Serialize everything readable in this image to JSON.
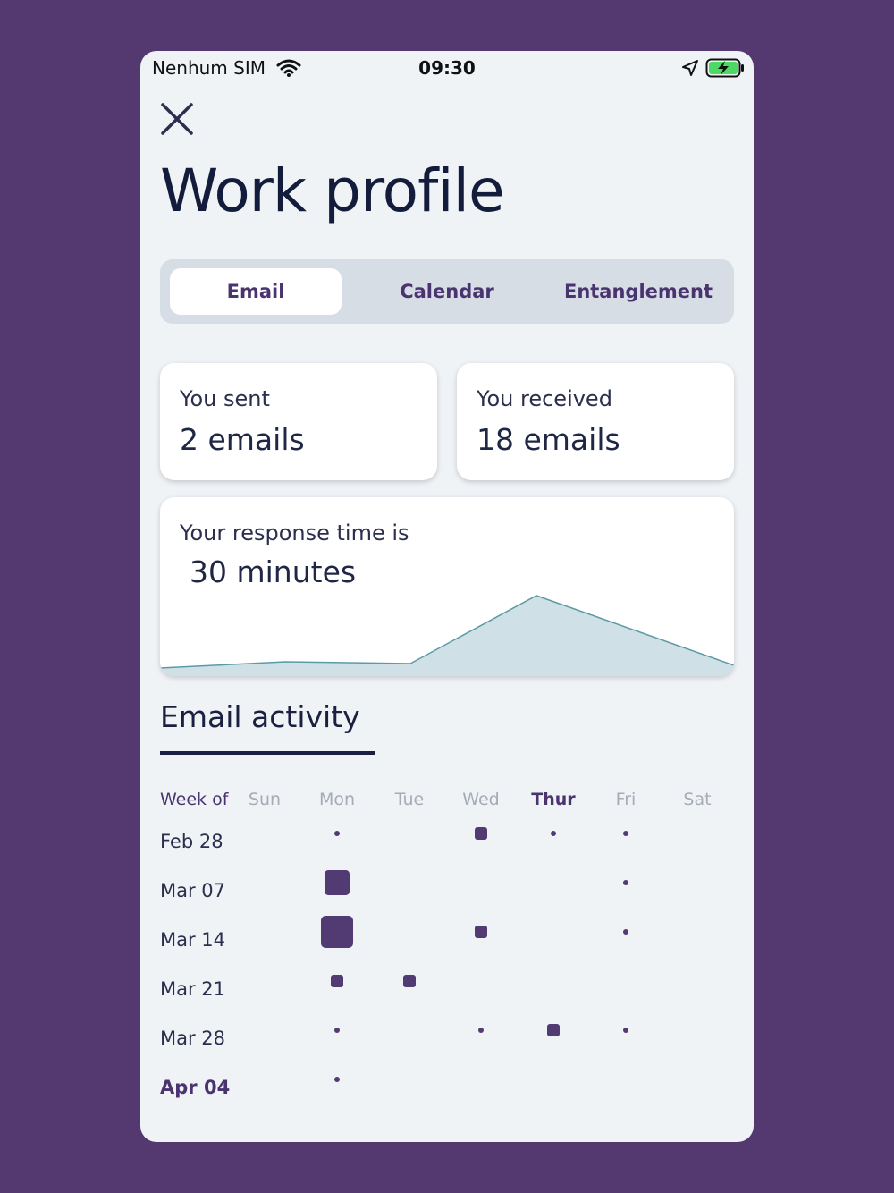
{
  "status_bar": {
    "carrier": "Nenhum SIM",
    "time": "09:30",
    "icons": [
      "wifi-icon",
      "location-arrow-icon",
      "battery-charging-icon"
    ]
  },
  "header": {
    "close_icon": "close-icon",
    "title": "Work profile"
  },
  "tabs": [
    {
      "label": "Email",
      "active": true
    },
    {
      "label": "Calendar",
      "active": false
    },
    {
      "label": "Entanglement",
      "active": false
    }
  ],
  "stats": {
    "sent": {
      "label": "You sent",
      "value": "2 emails"
    },
    "received": {
      "label": "You received",
      "value": "18 emails"
    }
  },
  "response_time": {
    "label": "Your response time is",
    "value": "30 minutes"
  },
  "email_activity": {
    "title": "Email activity",
    "week_of_label": "Week of",
    "days": [
      "Sun",
      "Mon",
      "Tue",
      "Wed",
      "Thur",
      "Fri",
      "Sat"
    ],
    "highlight_day": "Thur",
    "current_week": "Apr 04",
    "weeks": [
      {
        "label": "Feb 28",
        "activity": [
          0,
          1,
          0,
          2,
          1,
          1,
          0
        ]
      },
      {
        "label": "Mar 07",
        "activity": [
          0,
          3,
          0,
          0,
          0,
          1,
          0
        ]
      },
      {
        "label": "Mar 14",
        "activity": [
          0,
          4,
          0,
          2,
          0,
          1,
          0
        ]
      },
      {
        "label": "Mar 21",
        "activity": [
          0,
          2,
          2,
          0,
          0,
          0,
          0
        ]
      },
      {
        "label": "Mar 28",
        "activity": [
          0,
          1,
          0,
          1,
          2,
          1,
          0
        ]
      },
      {
        "label": "Apr 04",
        "activity": [
          0,
          1,
          0,
          0,
          0,
          0,
          0
        ]
      }
    ]
  },
  "colors": {
    "background": "#533970",
    "accent": "#4a3470",
    "dot": "#523a72",
    "chart_fill": "#cfe1e6",
    "chart_line": "#5c9aa5"
  }
}
